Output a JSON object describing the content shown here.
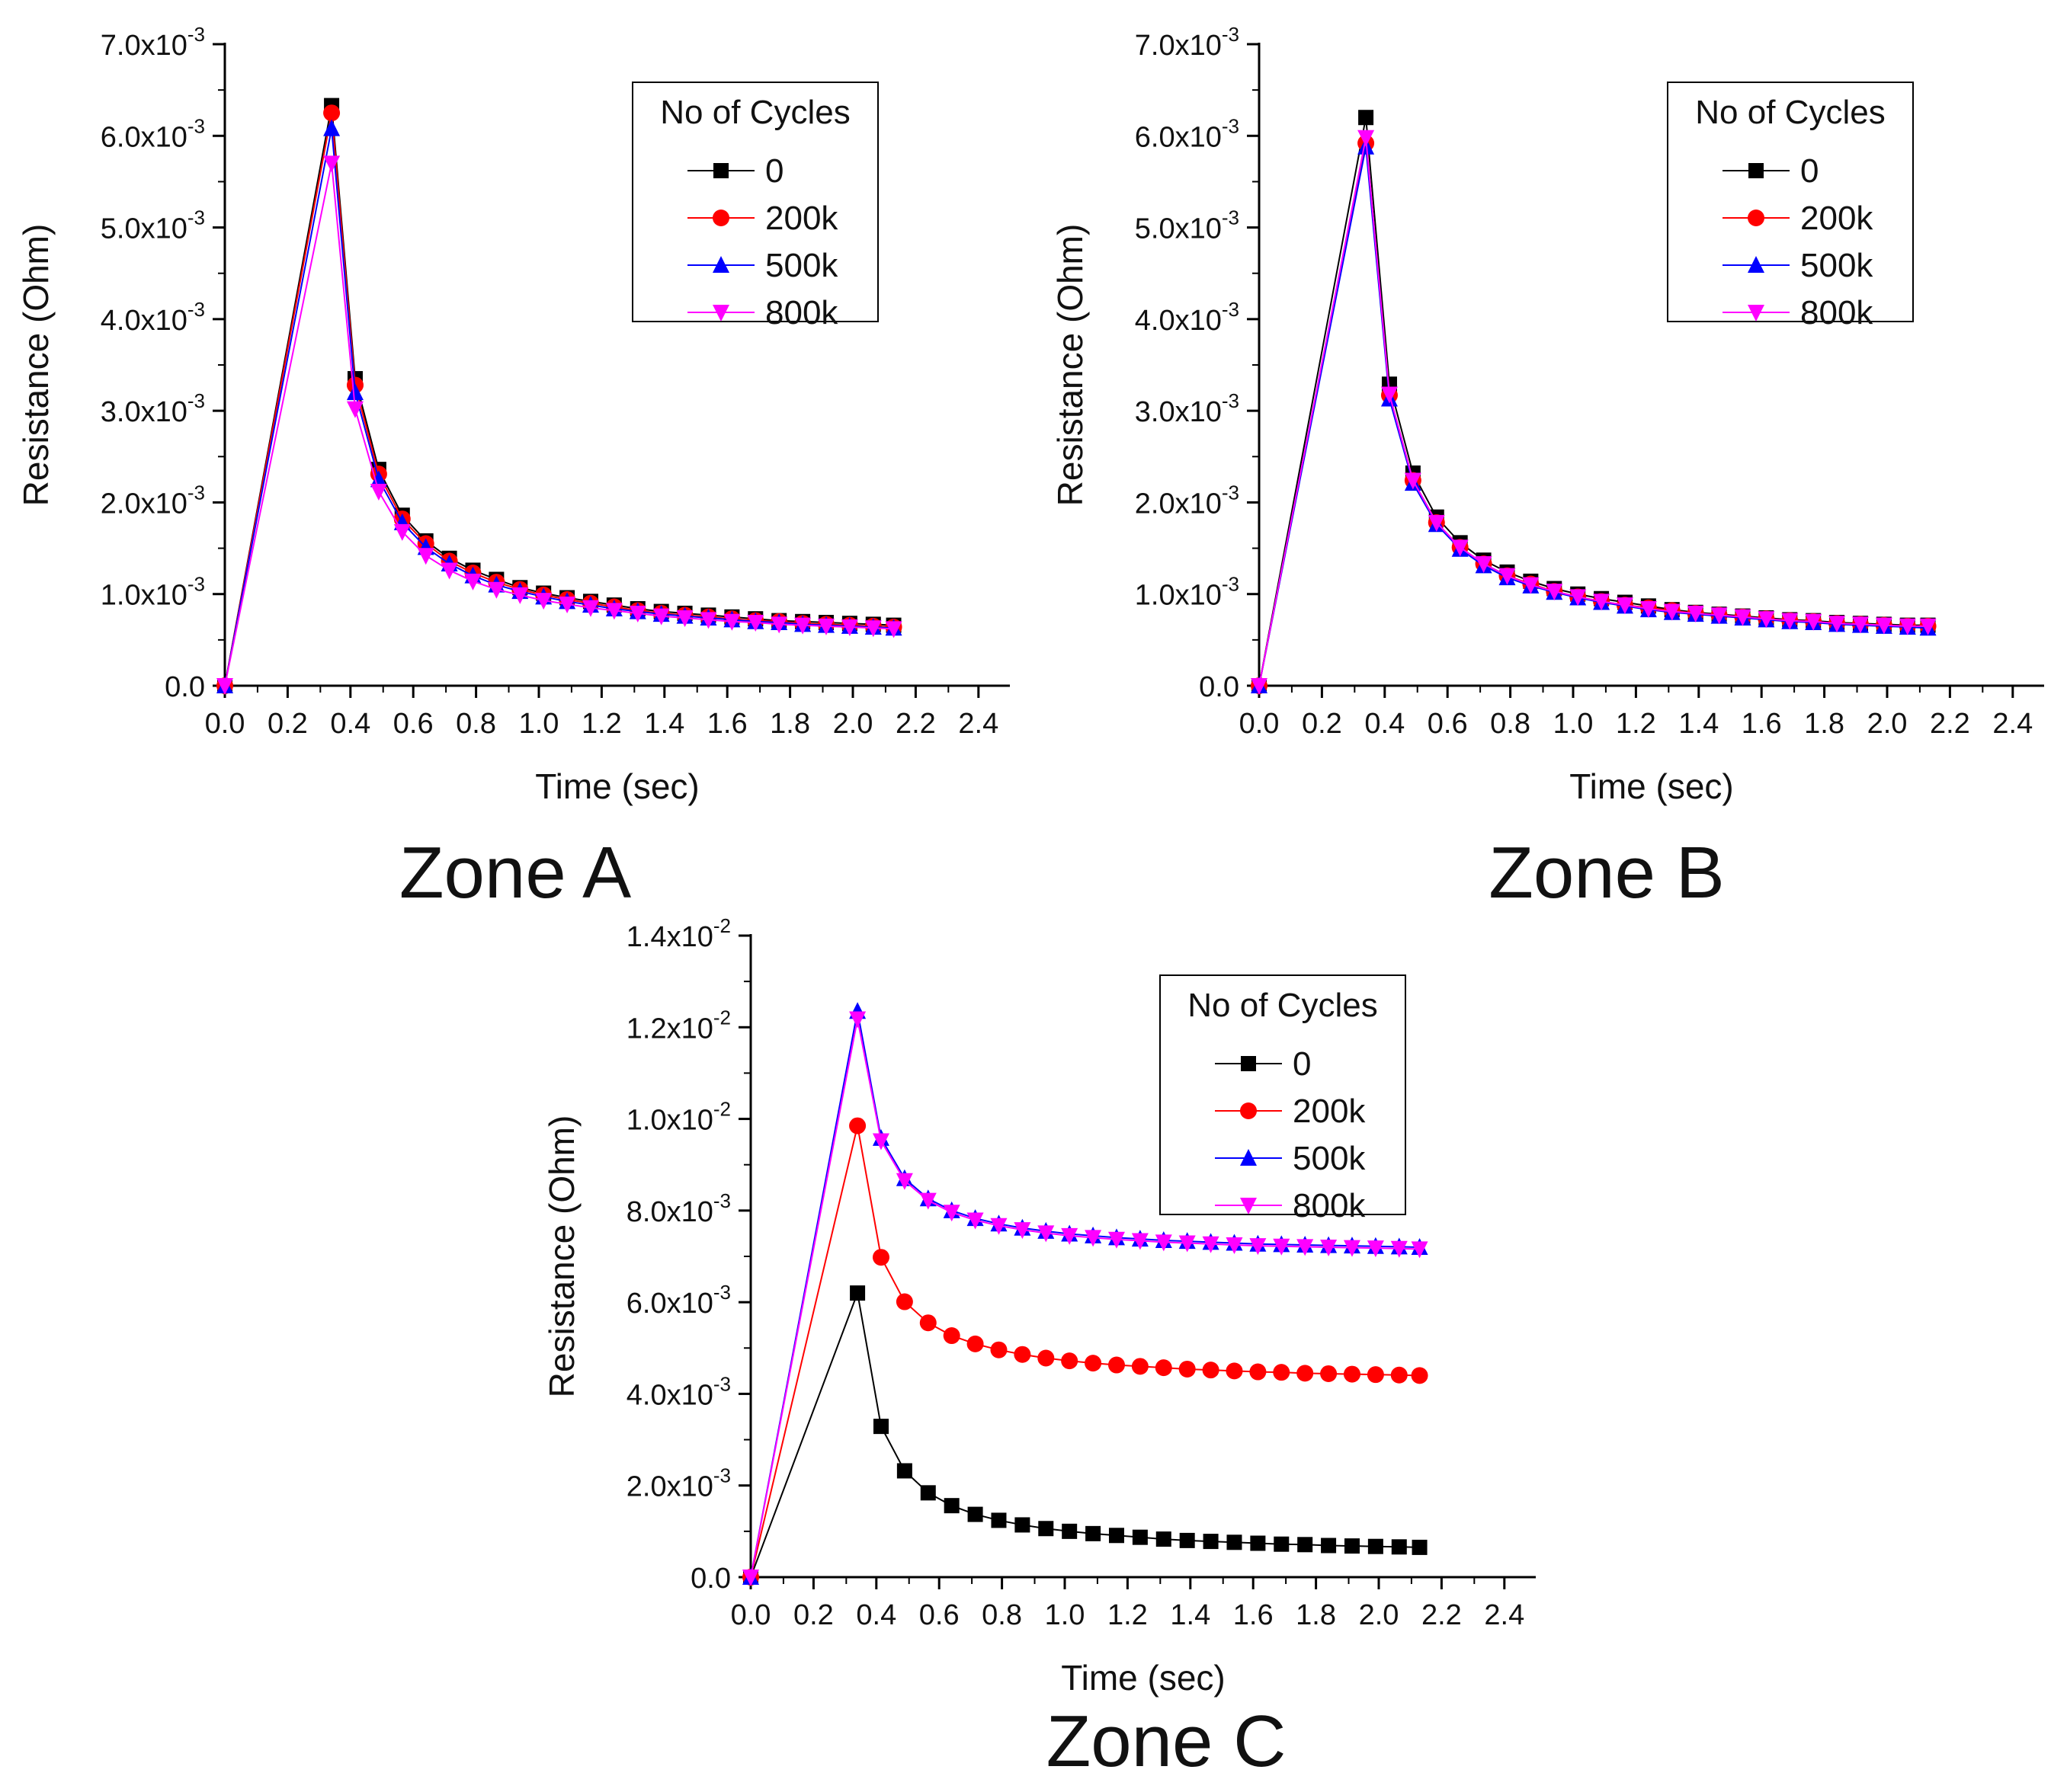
{
  "figure_caption": "",
  "chart_data": [
    {
      "type": "line",
      "title": "Zone A",
      "xlabel": "Time (sec)",
      "ylabel": "Resistance (Ohm)",
      "xlim": [
        0,
        2.5
      ],
      "ylim": [
        0,
        0.007
      ],
      "xticks": [
        "0.0",
        "0.2",
        "0.4",
        "0.6",
        "0.8",
        "1.0",
        "1.2",
        "1.4",
        "1.6",
        "1.8",
        "2.0",
        "2.2",
        "2.4"
      ],
      "yticks": [
        {
          "value": 0,
          "mantissa": "0.0",
          "exp": ""
        },
        {
          "value": 0.001,
          "mantissa": "1.0x10",
          "exp": "-3"
        },
        {
          "value": 0.002,
          "mantissa": "2.0x10",
          "exp": "-3"
        },
        {
          "value": 0.003,
          "mantissa": "3.0x10",
          "exp": "-3"
        },
        {
          "value": 0.004,
          "mantissa": "4.0x10",
          "exp": "-3"
        },
        {
          "value": 0.005,
          "mantissa": "5.0x10",
          "exp": "-3"
        },
        {
          "value": 0.006,
          "mantissa": "6.0x10",
          "exp": "-3"
        },
        {
          "value": 0.007,
          "mantissa": "7.0x10",
          "exp": "-3"
        }
      ],
      "legend": {
        "title": "No of Cycles",
        "position": "top-right"
      },
      "x": [
        0.0,
        0.34,
        0.415,
        0.49,
        0.565,
        0.64,
        0.715,
        0.79,
        0.865,
        0.94,
        1.015,
        1.09,
        1.165,
        1.24,
        1.315,
        1.39,
        1.465,
        1.54,
        1.615,
        1.69,
        1.765,
        1.84,
        1.915,
        1.99,
        2.065,
        2.13
      ],
      "series": [
        {
          "name": "0",
          "color": "#000000",
          "marker": "square",
          "values": [
            0,
            0.00633,
            0.00335,
            0.00236,
            0.00186,
            0.00158,
            0.00139,
            0.00126,
            0.00116,
            0.00107,
            0.00101,
            0.00096,
            0.00092,
            0.00088,
            0.00084,
            0.00081,
            0.00079,
            0.00077,
            0.00075,
            0.00073,
            0.00071,
            0.0007,
            0.00069,
            0.00068,
            0.00067,
            0.00066
          ]
        },
        {
          "name": "200k",
          "color": "#ff0000",
          "marker": "circle",
          "values": [
            0,
            0.00625,
            0.00328,
            0.00231,
            0.00182,
            0.00155,
            0.00136,
            0.00123,
            0.00113,
            0.00105,
            0.00099,
            0.00094,
            0.0009,
            0.00086,
            0.00082,
            0.00079,
            0.00077,
            0.00075,
            0.00073,
            0.00071,
            0.0007,
            0.00068,
            0.00067,
            0.00066,
            0.00065,
            0.00064
          ]
        },
        {
          "name": "500k",
          "color": "#0000ff",
          "marker": "triangle-up",
          "values": [
            0,
            0.00608,
            0.0032,
            0.00225,
            0.00178,
            0.00151,
            0.00133,
            0.0012,
            0.0011,
            0.00103,
            0.00097,
            0.00092,
            0.00088,
            0.00084,
            0.00081,
            0.00078,
            0.00076,
            0.00074,
            0.00072,
            0.0007,
            0.00069,
            0.00067,
            0.00066,
            0.00065,
            0.00064,
            0.00063
          ]
        },
        {
          "name": "800k",
          "color": "#ff00ff",
          "marker": "triangle-down",
          "values": [
            0,
            0.0057,
            0.00302,
            0.00212,
            0.00168,
            0.00142,
            0.00126,
            0.00114,
            0.00105,
            0.00099,
            0.00093,
            0.00089,
            0.00085,
            0.00082,
            0.00079,
            0.00076,
            0.00074,
            0.00072,
            0.0007,
            0.00069,
            0.00067,
            0.00066,
            0.00065,
            0.00064,
            0.00063,
            0.00062
          ]
        }
      ]
    },
    {
      "type": "line",
      "title": "Zone B",
      "xlabel": "Time (sec)",
      "ylabel": "Resistance (Ohm)",
      "xlim": [
        0,
        2.5
      ],
      "ylim": [
        0,
        0.007
      ],
      "xticks": [
        "0.0",
        "0.2",
        "0.4",
        "0.6",
        "0.8",
        "1.0",
        "1.2",
        "1.4",
        "1.6",
        "1.8",
        "2.0",
        "2.2",
        "2.4"
      ],
      "yticks": [
        {
          "value": 0,
          "mantissa": "0.0",
          "exp": ""
        },
        {
          "value": 0.001,
          "mantissa": "1.0x10",
          "exp": "-3"
        },
        {
          "value": 0.002,
          "mantissa": "2.0x10",
          "exp": "-3"
        },
        {
          "value": 0.003,
          "mantissa": "3.0x10",
          "exp": "-3"
        },
        {
          "value": 0.004,
          "mantissa": "4.0x10",
          "exp": "-3"
        },
        {
          "value": 0.005,
          "mantissa": "5.0x10",
          "exp": "-3"
        },
        {
          "value": 0.006,
          "mantissa": "6.0x10",
          "exp": "-3"
        },
        {
          "value": 0.007,
          "mantissa": "7.0x10",
          "exp": "-3"
        }
      ],
      "legend": {
        "title": "No of Cycles",
        "position": "top-right"
      },
      "x": [
        0.0,
        0.34,
        0.415,
        0.49,
        0.565,
        0.64,
        0.715,
        0.79,
        0.865,
        0.94,
        1.015,
        1.09,
        1.165,
        1.24,
        1.315,
        1.39,
        1.465,
        1.54,
        1.615,
        1.69,
        1.765,
        1.84,
        1.915,
        1.99,
        2.065,
        2.13
      ],
      "series": [
        {
          "name": "0",
          "color": "#000000",
          "marker": "square",
          "values": [
            0,
            0.0062,
            0.00329,
            0.00232,
            0.00184,
            0.00156,
            0.00137,
            0.00124,
            0.00114,
            0.00106,
            0.001,
            0.00095,
            0.00091,
            0.00087,
            0.00083,
            0.0008,
            0.00078,
            0.00076,
            0.00074,
            0.00072,
            0.00071,
            0.00069,
            0.00068,
            0.00067,
            0.00066,
            0.00066
          ]
        },
        {
          "name": "200k",
          "color": "#ff0000",
          "marker": "circle",
          "values": [
            0,
            0.00592,
            0.00317,
            0.00224,
            0.00178,
            0.00151,
            0.00133,
            0.0012,
            0.00111,
            0.00103,
            0.00097,
            0.00092,
            0.00088,
            0.00085,
            0.00082,
            0.00079,
            0.00077,
            0.00075,
            0.00073,
            0.00071,
            0.0007,
            0.00068,
            0.00067,
            0.00066,
            0.00065,
            0.00065
          ]
        },
        {
          "name": "500k",
          "color": "#0000ff",
          "marker": "triangle-up",
          "values": [
            0,
            0.00588,
            0.00313,
            0.00221,
            0.00176,
            0.00149,
            0.00131,
            0.00118,
            0.00109,
            0.00102,
            0.00096,
            0.00091,
            0.00087,
            0.00083,
            0.0008,
            0.00078,
            0.00076,
            0.00074,
            0.00072,
            0.0007,
            0.00069,
            0.00067,
            0.00066,
            0.00065,
            0.00064,
            0.00063
          ]
        },
        {
          "name": "800k",
          "color": "#ff00ff",
          "marker": "triangle-down",
          "values": [
            0,
            0.00598,
            0.00318,
            0.00224,
            0.00178,
            0.00151,
            0.00133,
            0.0012,
            0.0011,
            0.00103,
            0.00097,
            0.00092,
            0.00088,
            0.00084,
            0.00081,
            0.00079,
            0.00077,
            0.00075,
            0.00073,
            0.00071,
            0.0007,
            0.00068,
            0.00067,
            0.00066,
            0.00065,
            0.00065
          ]
        }
      ]
    },
    {
      "type": "line",
      "title": "Zone C",
      "xlabel": "Time (sec)",
      "ylabel": "Resistance (Ohm)",
      "xlim": [
        0,
        2.5
      ],
      "ylim": [
        0,
        0.014
      ],
      "xticks": [
        "0.0",
        "0.2",
        "0.4",
        "0.6",
        "0.8",
        "1.0",
        "1.2",
        "1.4",
        "1.6",
        "1.8",
        "2.0",
        "2.2",
        "2.4"
      ],
      "yticks": [
        {
          "value": 0,
          "mantissa": "0.0",
          "exp": ""
        },
        {
          "value": 0.002,
          "mantissa": "2.0x10",
          "exp": "-3"
        },
        {
          "value": 0.004,
          "mantissa": "4.0x10",
          "exp": "-3"
        },
        {
          "value": 0.006,
          "mantissa": "6.0x10",
          "exp": "-3"
        },
        {
          "value": 0.008,
          "mantissa": "8.0x10",
          "exp": "-3"
        },
        {
          "value": 0.01,
          "mantissa": "1.0x10",
          "exp": "-2"
        },
        {
          "value": 0.012,
          "mantissa": "1.2x10",
          "exp": "-2"
        },
        {
          "value": 0.014,
          "mantissa": "1.4x10",
          "exp": "-2"
        }
      ],
      "legend": {
        "title": "No of Cycles",
        "position": "top-right"
      },
      "x": [
        0.0,
        0.34,
        0.415,
        0.49,
        0.565,
        0.64,
        0.715,
        0.79,
        0.865,
        0.94,
        1.015,
        1.09,
        1.165,
        1.24,
        1.315,
        1.39,
        1.465,
        1.54,
        1.615,
        1.69,
        1.765,
        1.84,
        1.915,
        1.99,
        2.065,
        2.13
      ],
      "series": [
        {
          "name": "0",
          "color": "#000000",
          "marker": "square",
          "values": [
            0,
            0.0062,
            0.00329,
            0.00232,
            0.00184,
            0.00156,
            0.00137,
            0.00124,
            0.00114,
            0.00106,
            0.001,
            0.00095,
            0.00091,
            0.00087,
            0.00083,
            0.0008,
            0.00078,
            0.00076,
            0.00074,
            0.00072,
            0.00071,
            0.00069,
            0.00068,
            0.00067,
            0.00066,
            0.00065
          ]
        },
        {
          "name": "200k",
          "color": "#ff0000",
          "marker": "circle",
          "values": [
            0,
            0.00985,
            0.00698,
            0.00601,
            0.00555,
            0.00527,
            0.00509,
            0.00496,
            0.00486,
            0.00478,
            0.00472,
            0.00467,
            0.00463,
            0.0046,
            0.00457,
            0.00454,
            0.00452,
            0.0045,
            0.00448,
            0.00447,
            0.00445,
            0.00444,
            0.00443,
            0.00442,
            0.00441,
            0.0044
          ]
        },
        {
          "name": "500k",
          "color": "#0000ff",
          "marker": "triangle-up",
          "values": [
            0,
            0.01235,
            0.00958,
            0.0087,
            0.00826,
            0.008,
            0.00783,
            0.00771,
            0.00762,
            0.00755,
            0.00749,
            0.00745,
            0.00741,
            0.00738,
            0.00735,
            0.00733,
            0.00731,
            0.00729,
            0.00727,
            0.00726,
            0.00725,
            0.00724,
            0.00723,
            0.00722,
            0.00721,
            0.0072
          ]
        },
        {
          "name": "800k",
          "color": "#ff00ff",
          "marker": "triangle-down",
          "values": [
            0,
            0.01218,
            0.00952,
            0.00865,
            0.00822,
            0.00796,
            0.00779,
            0.00767,
            0.00758,
            0.00751,
            0.00745,
            0.00741,
            0.00737,
            0.00734,
            0.00731,
            0.00729,
            0.00727,
            0.00725,
            0.00723,
            0.00722,
            0.00721,
            0.0072,
            0.00719,
            0.00718,
            0.00717,
            0.00716
          ]
        }
      ]
    }
  ]
}
